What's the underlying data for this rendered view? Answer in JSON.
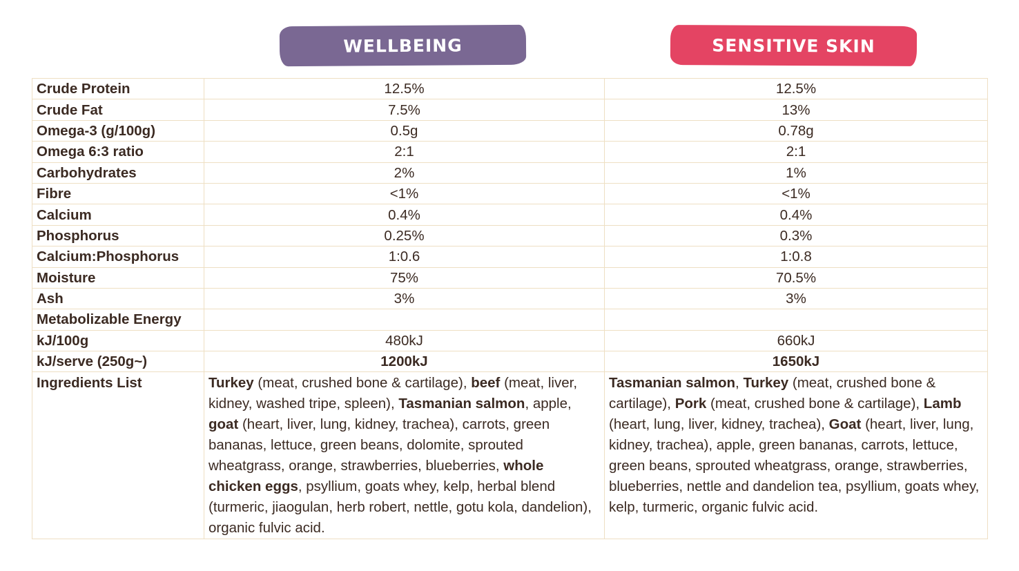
{
  "products": [
    {
      "name": "WELLBEING",
      "color": "#7a6893"
    },
    {
      "name": "SENSITIVE SKIN",
      "color": "#e44463"
    }
  ],
  "rows": [
    {
      "label": "Crude Protein",
      "wellbeing": "12.5%",
      "sensitive": "12.5%"
    },
    {
      "label": "Crude Fat",
      "wellbeing": "7.5%",
      "sensitive": "13%"
    },
    {
      "label": "Omega-3 (g/100g)",
      "wellbeing": "0.5g",
      "sensitive": "0.78g"
    },
    {
      "label": "Omega 6:3 ratio",
      "wellbeing": "2:1",
      "sensitive": "2:1"
    },
    {
      "label": "Carbohydrates",
      "wellbeing": "2%",
      "sensitive": "1%"
    },
    {
      "label": "Fibre",
      "wellbeing": "<1%",
      "sensitive": "<1%"
    },
    {
      "label": "Calcium",
      "wellbeing": "0.4%",
      "sensitive": "0.4%"
    },
    {
      "label": "Phosphorus",
      "wellbeing": "0.25%",
      "sensitive": "0.3%"
    },
    {
      "label": "Calcium:Phosphorus",
      "wellbeing": "1:0.6",
      "sensitive": "1:0.8"
    },
    {
      "label": "Moisture",
      "wellbeing": "75%",
      "sensitive": "70.5%"
    },
    {
      "label": "Ash",
      "wellbeing": "3%",
      "sensitive": "3%"
    },
    {
      "label": "Metabolizable Energy",
      "wellbeing": "",
      "sensitive": ""
    },
    {
      "label": "kJ/100g",
      "wellbeing": "480kJ",
      "sensitive": "660kJ"
    },
    {
      "label": "kJ/serve (250g~)",
      "wellbeing": "1200kJ",
      "sensitive": "1650kJ"
    }
  ],
  "ingredients": {
    "label": "Ingredients List",
    "wellbeing": [
      {
        "t": "Turkey",
        "b": true
      },
      {
        "t": " (meat, crushed bone & cartilage), ",
        "b": false
      },
      {
        "t": "beef",
        "b": true
      },
      {
        "t": " (meat, liver, kidney, washed tripe, spleen), ",
        "b": false
      },
      {
        "t": "Tasmanian salmon",
        "b": true
      },
      {
        "t": ", apple, ",
        "b": false
      },
      {
        "t": "goat",
        "b": true
      },
      {
        "t": " (heart, liver, lung, kidney, trachea), carrots, green bananas, lettuce, green beans, dolomite, sprouted wheatgrass, orange, strawberries, blueberries, ",
        "b": false
      },
      {
        "t": "whole chicken eggs",
        "b": true
      },
      {
        "t": ", psyllium, goats whey, kelp, herbal blend (turmeric, jiaogulan, herb robert, nettle, gotu kola, dandelion), organic fulvic acid.",
        "b": false
      }
    ],
    "sensitive": [
      {
        "t": "Tasmanian salmon",
        "b": true
      },
      {
        "t": ", ",
        "b": false
      },
      {
        "t": "Turkey",
        "b": true
      },
      {
        "t": " (meat, crushed bone & cartilage), ",
        "b": false
      },
      {
        "t": "Pork",
        "b": true
      },
      {
        "t": " (meat, crushed bone & cartilage), ",
        "b": false
      },
      {
        "t": "Lamb",
        "b": true
      },
      {
        "t": " (heart, lung, liver, kidney, trachea), ",
        "b": false
      },
      {
        "t": "Goat",
        "b": true
      },
      {
        "t": " (heart, liver, lung, kidney, trachea), apple, green bananas, carrots, lettuce, green beans, sprouted wheatgrass, orange, strawberries, blueberries, nettle and dandelion tea, psyllium, goats whey, kelp, turmeric, organic fulvic acid.",
        "b": false
      }
    ]
  }
}
